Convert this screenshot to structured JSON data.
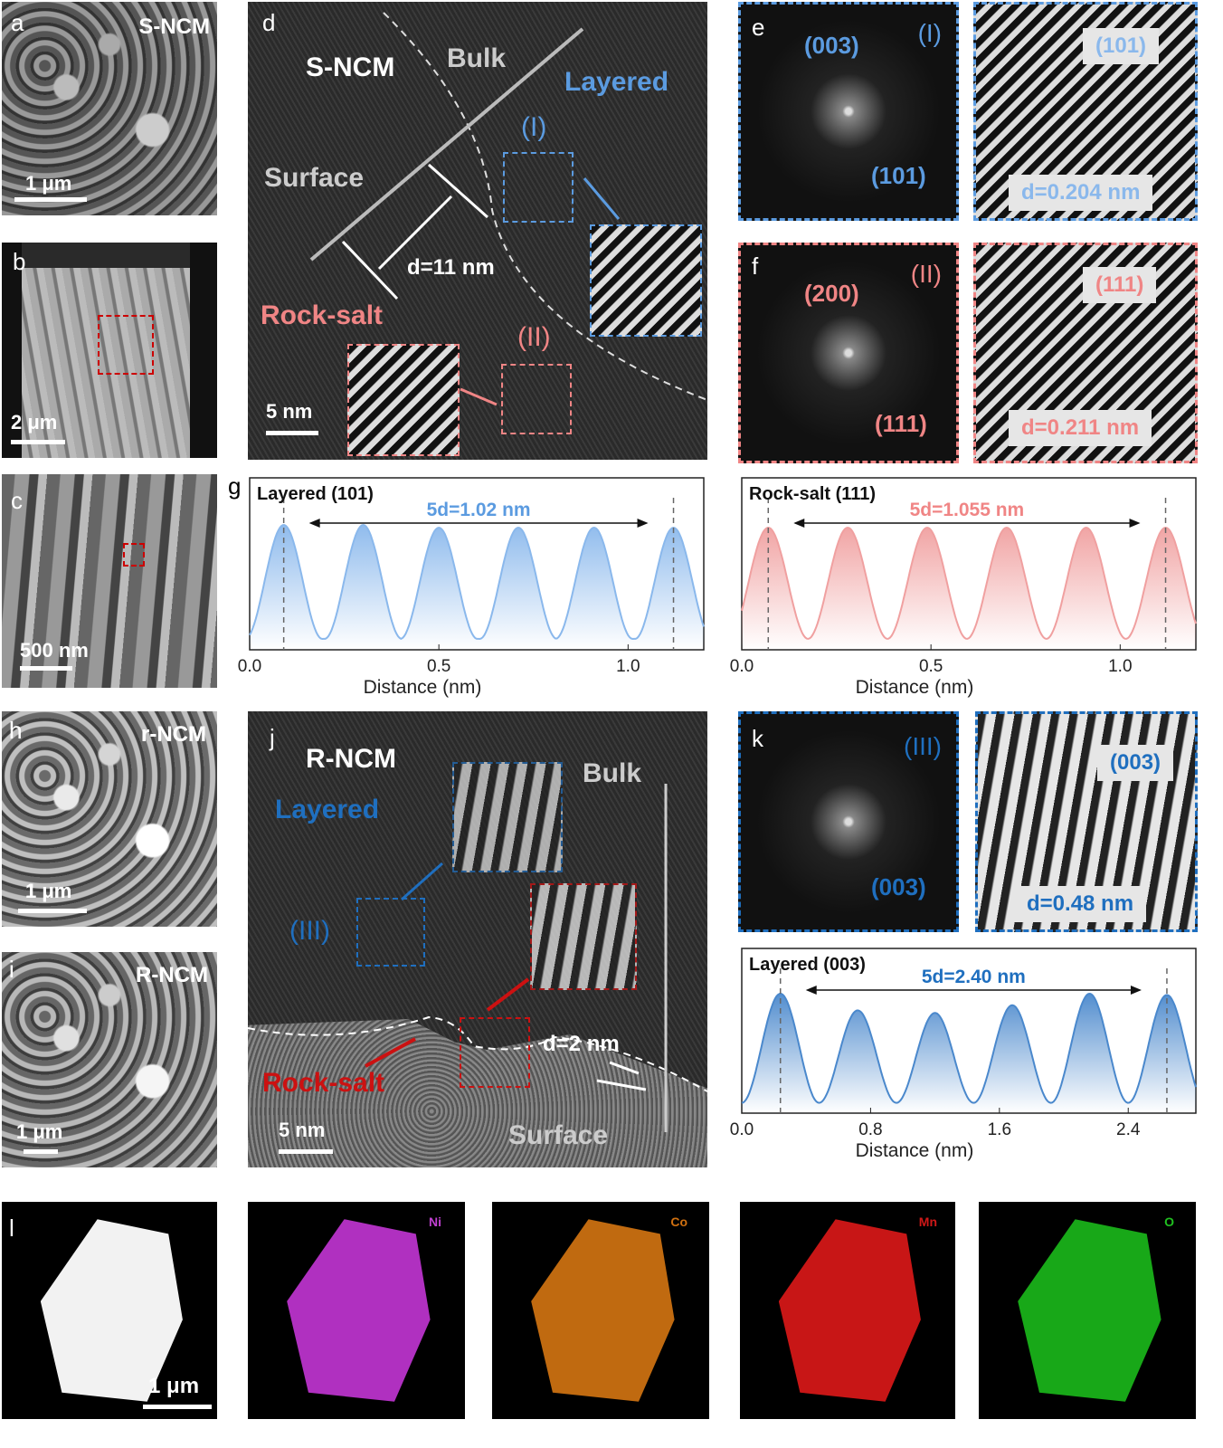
{
  "panels": {
    "a": {
      "letter": "a",
      "title": "S-NCM",
      "scale": "1 μm"
    },
    "b": {
      "letter": "b",
      "scale": "2 μm"
    },
    "c": {
      "letter": "c",
      "scale": "500 nm"
    },
    "d": {
      "letter": "d",
      "sample": "S-NCM",
      "bulk": "Bulk",
      "layered": "Layered",
      "region1": "(I)",
      "surface": "Surface",
      "distance": "d=11 nm",
      "rocksalt": "Rock-salt",
      "region2": "(II)",
      "scale": "5 nm"
    },
    "e": {
      "letter": "e",
      "region": "(I)",
      "spot1": "(003)",
      "spot2": "(101)",
      "plane": "(101)",
      "spacing": "d=0.204 nm"
    },
    "f": {
      "letter": "f",
      "region": "(II)",
      "spot1": "(200)",
      "spot2": "(111)",
      "plane": "(111)",
      "spacing": "d=0.211 nm"
    },
    "g": {
      "letter": "g"
    },
    "h": {
      "letter": "h",
      "title": "r-NCM",
      "scale": "1 μm"
    },
    "i": {
      "letter": "i",
      "title": "R-NCM",
      "scale": "1 μm"
    },
    "j": {
      "letter": "j",
      "sample": "R-NCM",
      "layered": "Layered",
      "bulk": "Bulk",
      "region": "(III)",
      "distance": "d=2 nm",
      "rocksalt": "Rock-salt",
      "surface": "Surface",
      "scale": "5 nm"
    },
    "k": {
      "letter": "k",
      "region": "(III)",
      "spot": "(003)",
      "plane": "(003)",
      "spacing": "d=0.48 nm"
    },
    "l": {
      "letter": "l",
      "scale": "1 μm",
      "elements": [
        "Ni",
        "Co",
        "Mn",
        "O"
      ]
    }
  },
  "colors": {
    "layered": "#5b9be0",
    "rocksalt": "#f08585",
    "layered_dark": "#1f6fbf",
    "rocksalt_dark": "#cc1111",
    "Ni": "#c040d0",
    "Co": "#d07010",
    "Mn": "#d01818",
    "O": "#20c020"
  },
  "chart_data": [
    {
      "type": "line",
      "title": "Layered (101)",
      "annotation": "5d=1.02 nm",
      "xlabel": "Distance (nm)",
      "xlim": [
        0,
        1.2
      ],
      "xticks": [
        "0.0",
        "0.5",
        "1.0"
      ],
      "xtick_values": [
        0,
        0.5,
        1.0
      ],
      "peaks": [
        0.09,
        0.3,
        0.5,
        0.71,
        0.91,
        1.12
      ],
      "peak_heights": [
        0.92,
        0.92,
        0.9,
        0.9,
        0.9,
        0.9
      ],
      "period": 0.204,
      "markers": [
        0.09,
        1.12
      ],
      "color": "#8ab8ec"
    },
    {
      "type": "line",
      "title": "Rock-salt (111)",
      "annotation": "5d=1.055 nm",
      "xlabel": "Distance (nm)",
      "xlim": [
        0,
        1.2
      ],
      "xticks": [
        "0.0",
        "0.5",
        "1.0"
      ],
      "xtick_values": [
        0,
        0.5,
        1.0
      ],
      "peaks": [
        0.07,
        0.28,
        0.49,
        0.7,
        0.91,
        1.12
      ],
      "peak_heights": [
        0.9,
        0.9,
        0.9,
        0.9,
        0.9,
        0.9
      ],
      "period": 0.211,
      "markers": [
        0.07,
        1.12
      ],
      "color": "#f0a0a0"
    },
    {
      "type": "line",
      "title": "Layered (003)",
      "annotation": "5d=2.40 nm",
      "xlabel": "Distance (nm)",
      "xlim": [
        0,
        2.82
      ],
      "xticks": [
        "0.0",
        "0.8",
        "1.6",
        "2.4"
      ],
      "xtick_values": [
        0,
        0.8,
        1.6,
        2.4
      ],
      "peaks": [
        0.24,
        0.72,
        1.2,
        1.68,
        2.16,
        2.64
      ],
      "peak_heights": [
        0.93,
        0.8,
        0.78,
        0.84,
        0.93,
        0.92
      ],
      "period": 0.48,
      "markers": [
        0.24,
        2.64
      ],
      "color": "#4a88cc"
    }
  ]
}
